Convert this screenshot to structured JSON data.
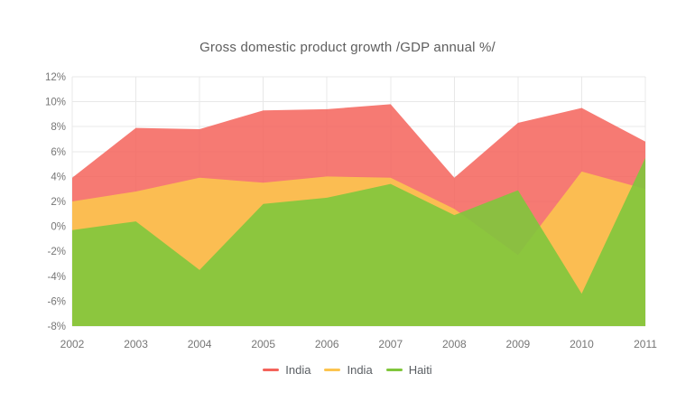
{
  "title": "Gross domestic product growth /GDP annual %/",
  "chart_data": {
    "type": "area",
    "x": [
      2002,
      2003,
      2004,
      2005,
      2006,
      2007,
      2008,
      2009,
      2010,
      2011
    ],
    "x_labels": [
      "2002",
      "2003",
      "2004",
      "2005",
      "2006",
      "2007",
      "2008",
      "2009",
      "2010",
      "2011"
    ],
    "y_labels": [
      "12%",
      "10%",
      "8%",
      "6%",
      "4%",
      "2%",
      "0%",
      "-2%",
      "-4%",
      "-6%",
      "-8%"
    ],
    "ylim": [
      -8,
      12
    ],
    "ytick_step": 2,
    "grid": true,
    "legend_position": "bottom",
    "area_baseline": -8,
    "title": "Gross domestic product growth /GDP annual %/",
    "xlabel": "",
    "ylabel": "",
    "series": [
      {
        "name": "India",
        "color": "#F4635B",
        "fill_opacity": 0.85,
        "values": [
          3.9,
          7.9,
          7.8,
          9.3,
          9.4,
          9.8,
          3.9,
          8.3,
          9.5,
          6.8
        ]
      },
      {
        "name": "India",
        "color": "#FCC44F",
        "fill_opacity": 0.9,
        "values": [
          2.0,
          2.8,
          3.9,
          3.5,
          4.0,
          3.9,
          1.4,
          -2.3,
          4.4,
          3.0
        ]
      },
      {
        "name": "Haiti",
        "color": "#80C63C",
        "fill_opacity": 0.9,
        "values": [
          -0.3,
          0.4,
          -3.5,
          1.8,
          2.3,
          3.4,
          0.9,
          2.9,
          -5.4,
          5.5
        ]
      }
    ]
  },
  "legend": {
    "items": [
      {
        "label": "India",
        "color": "#F4635B"
      },
      {
        "label": "India",
        "color": "#FCC44F"
      },
      {
        "label": "Haiti",
        "color": "#80C63C"
      }
    ]
  },
  "style": {
    "grid_color": "#E8E8E8",
    "axis_label_color": "#767676",
    "title_color": "#5E5E5E",
    "legend_text_color": "#5A5E63",
    "background": "#FFFFFF"
  }
}
